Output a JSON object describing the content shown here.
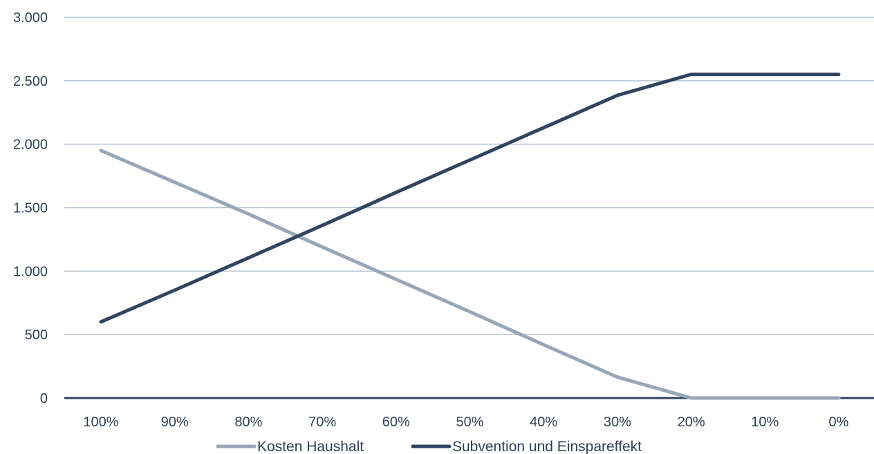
{
  "chart_data": {
    "type": "line",
    "title": "",
    "xlabel": "",
    "ylabel": "",
    "categories": [
      "100%",
      "90%",
      "80%",
      "70%",
      "60%",
      "50%",
      "40%",
      "30%",
      "20%",
      "10%",
      "0%"
    ],
    "ylim": [
      0,
      3000
    ],
    "yticks": [
      0,
      500,
      1000,
      1500,
      2000,
      2500,
      3000
    ],
    "ytick_labels": [
      "0",
      "500",
      "1.000",
      "1.500",
      "2.000",
      "2.500",
      "3.000"
    ],
    "grid": "horizontal",
    "legend_position": "bottom",
    "series": [
      {
        "name": "Kosten Haushalt",
        "color": "#97a6b8",
        "values": [
          1950,
          1700,
          1450,
          1190,
          935,
          680,
          420,
          165,
          0,
          0,
          0
        ]
      },
      {
        "name": "Subvention und Einspareffekt",
        "color": "#2f4560",
        "values": [
          600,
          850,
          1105,
          1360,
          1620,
          1875,
          2130,
          2385,
          2550,
          2550,
          2550
        ]
      }
    ],
    "colors": {
      "grid": "#b7c3cf",
      "axis": "#2f4560",
      "text": "#2f3e52"
    }
  }
}
